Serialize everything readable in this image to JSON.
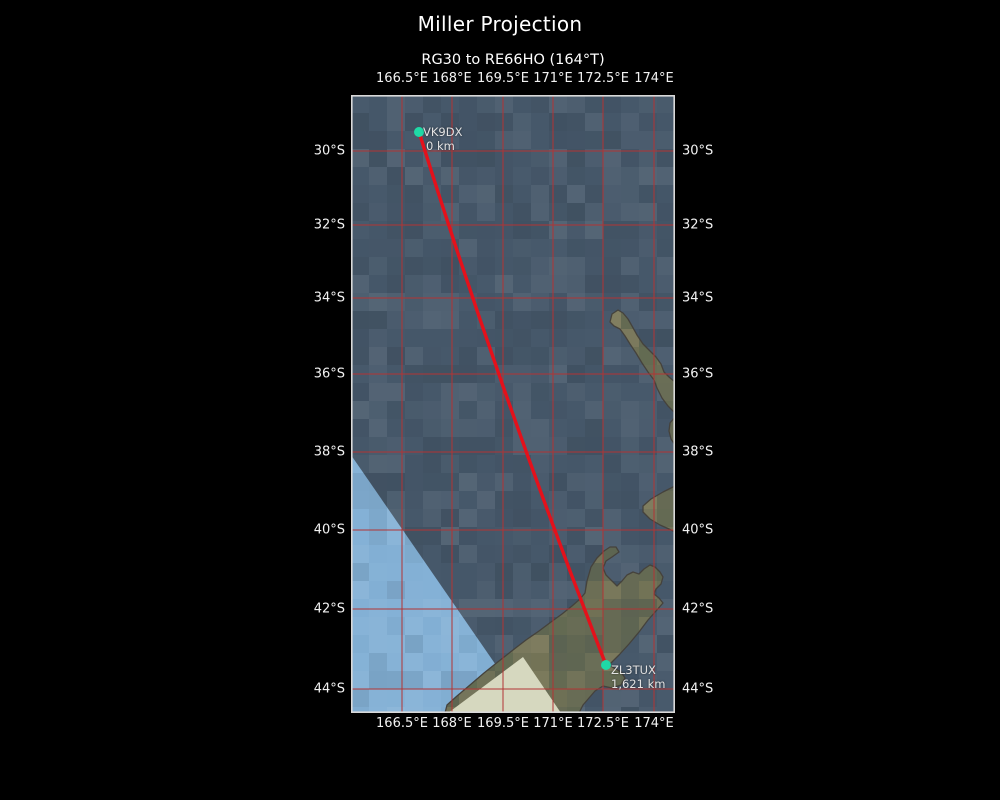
{
  "title": "Miller Projection",
  "subtitle": "RG30 to RE66HO (164°T)",
  "path_info": {
    "from_grid": "RG30",
    "to_grid": "RE66HO",
    "bearing": "164°T",
    "total_distance": "1,621 km"
  },
  "axes": {
    "lon_ticks": [
      "166.5°E",
      "168°E",
      "169.5°E",
      "171°E",
      "172.5°E",
      "174°E"
    ],
    "lat_ticks": [
      "30°S",
      "32°S",
      "34°S",
      "36°S",
      "38°S",
      "40°S",
      "42°S",
      "44°S"
    ]
  },
  "markers": [
    {
      "label": "VK9DX",
      "distance": "0 km"
    },
    {
      "label": "ZL3TUX",
      "distance": "1,621 km"
    }
  ],
  "colors": {
    "background": "#000000",
    "text": "#ffffff",
    "grid": "#b23434",
    "track": "#e4111b",
    "marker": "#1fd9a6",
    "ocean": "#46586a",
    "ocean_shallow": "#84b1d6",
    "land": "#666a54",
    "sand": "#d6d8bf",
    "coast": "#45423c",
    "map_border": "#d9d9d9"
  }
}
